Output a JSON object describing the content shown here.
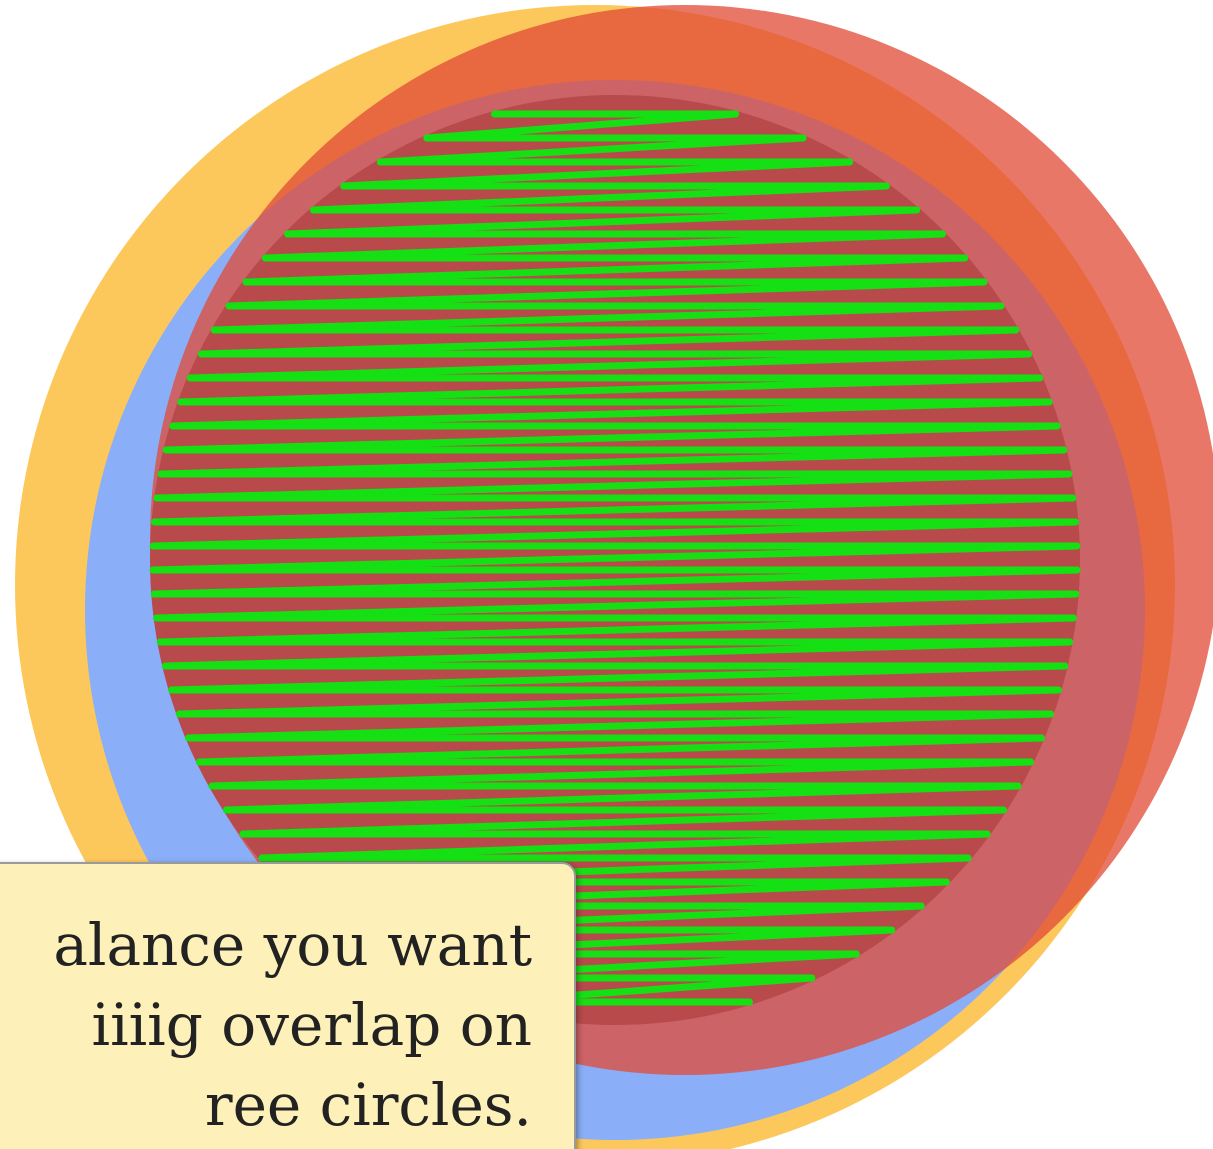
{
  "tooltip": {
    "lines": [
      "alance you want",
      "iiiig overlap on",
      "ree circles."
    ]
  }
}
